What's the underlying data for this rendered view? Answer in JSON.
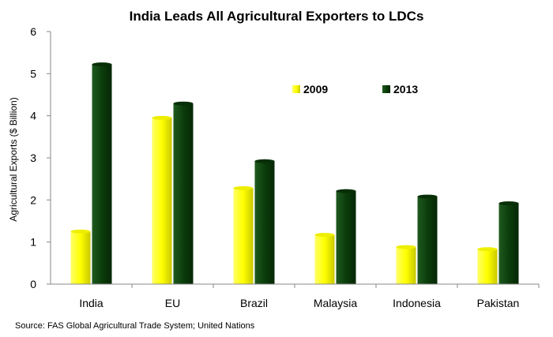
{
  "chart_data": {
    "type": "bar",
    "title": "India Leads All Agricultural Exporters to LDCs",
    "ylabel": "Agricultural Exports ($ Billion)",
    "xlabel": "",
    "ylim": [
      0,
      6
    ],
    "yticks": [
      "0",
      "1",
      "2",
      "3",
      "4",
      "5",
      "6"
    ],
    "categories": [
      "India",
      "EU",
      "Brazil",
      "Malaysia",
      "Indonesia",
      "Pakistan"
    ],
    "series": [
      {
        "name": "2009",
        "color": "#ffff00",
        "values": [
          1.25,
          3.95,
          2.28,
          1.17,
          0.88,
          0.83
        ]
      },
      {
        "name": "2013",
        "color": "#0b3d0b",
        "values": [
          5.22,
          4.29,
          2.92,
          2.21,
          2.08,
          1.92
        ]
      }
    ],
    "legend_position": "upper-right-inside",
    "grid": false,
    "source": "Source: FAS Global Agricultural Trade System; United Nations"
  }
}
